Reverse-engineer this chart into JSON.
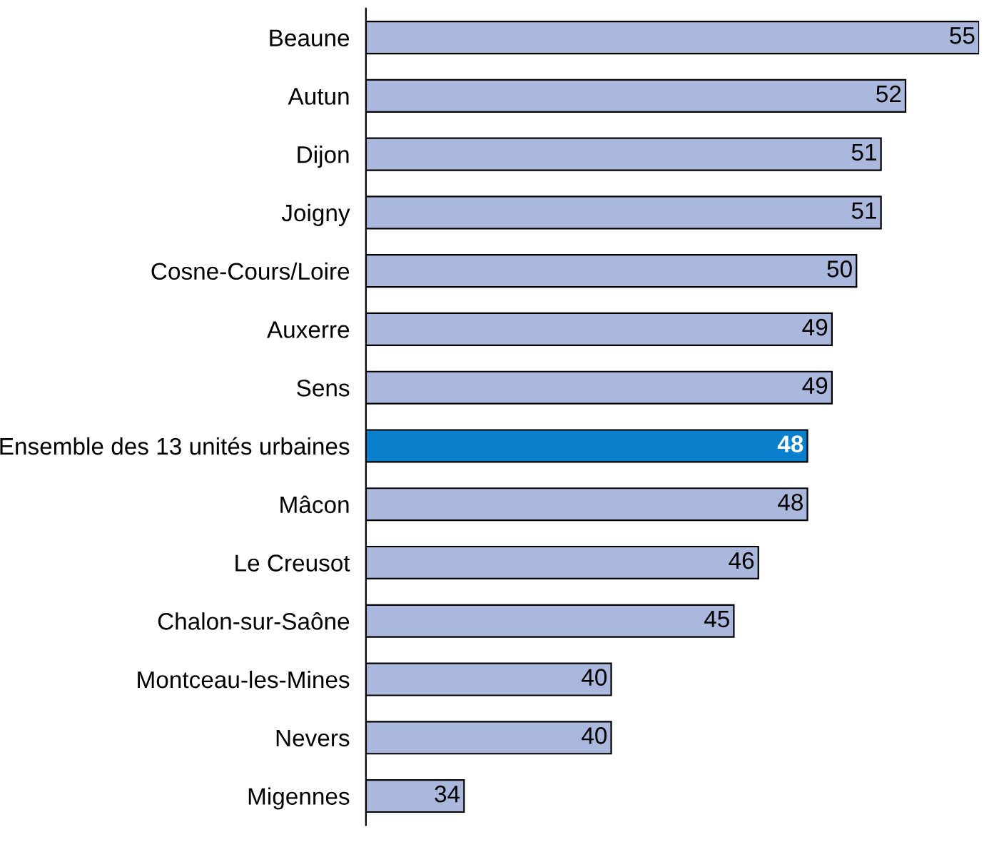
{
  "chart_data": {
    "type": "bar",
    "orientation": "horizontal",
    "categories": [
      "Beaune",
      "Autun",
      "Dijon",
      "Joigny",
      "Cosne-Cours/Loire",
      "Auxerre",
      "Sens",
      "Ensemble des 13 unités urbaines",
      "Mâcon",
      "Le Creusot",
      "Chalon-sur-Saône",
      "Montceau-les-Mines",
      "Nevers",
      "Migennes"
    ],
    "values": [
      55,
      52,
      51,
      51,
      50,
      49,
      49,
      48,
      48,
      46,
      45,
      40,
      40,
      34
    ],
    "colors": [
      "#aab8dd",
      "#aab8dd",
      "#aab8dd",
      "#aab8dd",
      "#aab8dd",
      "#aab8dd",
      "#aab8dd",
      "#0a7fcc",
      "#aab8dd",
      "#aab8dd",
      "#aab8dd",
      "#aab8dd",
      "#aab8dd",
      "#aab8dd"
    ],
    "xlim": [
      30,
      55
    ],
    "tick_labels": "y",
    "data_labels": true,
    "grid": false,
    "legend": false
  }
}
